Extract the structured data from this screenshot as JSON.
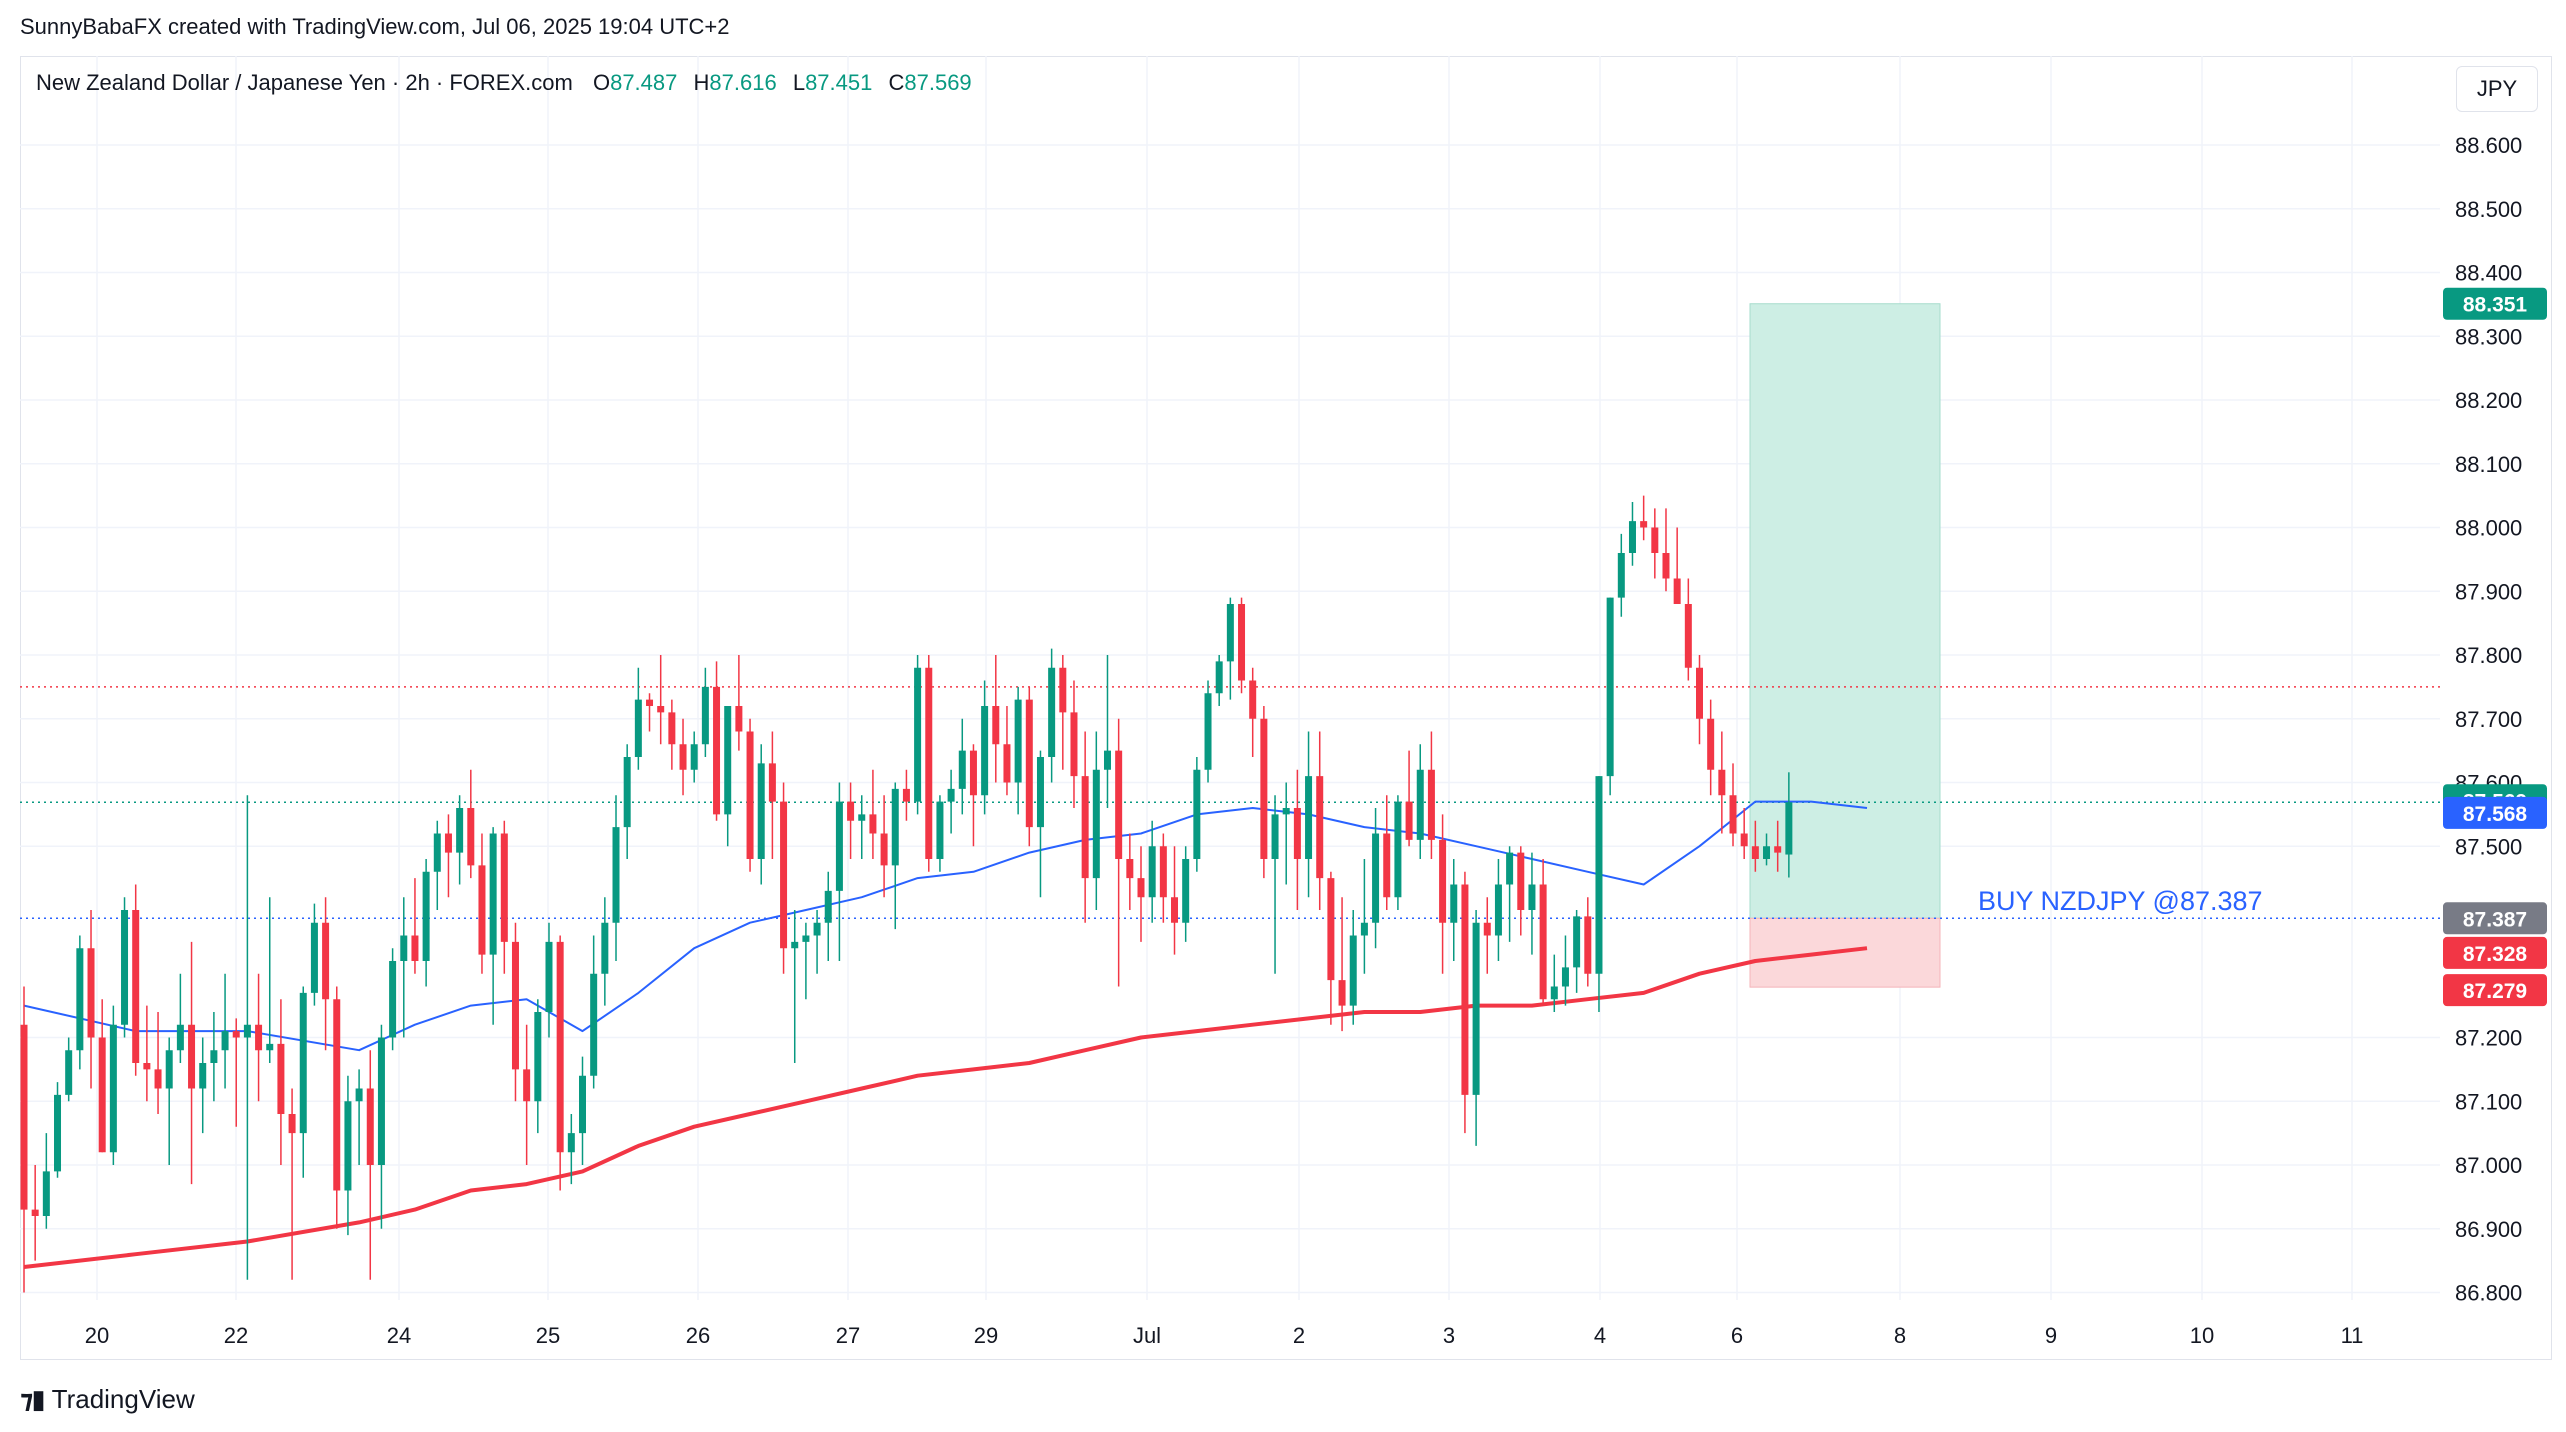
{
  "header": {
    "credit": "SunnyBabaFX created with TradingView.com, Jul 06, 2025 19:04 UTC+2"
  },
  "legend": {
    "symbol": "New Zealand Dollar / Japanese Yen · 2h · FOREX.com",
    "o_label": "O",
    "o_value": "87.487",
    "h_label": "H",
    "h_value": "87.616",
    "l_label": "L",
    "l_value": "87.451",
    "c_label": "C",
    "c_value": "87.569"
  },
  "currency_button": "JPY",
  "brand": {
    "name": "TradingView",
    "icon": "tradingview-logo-icon"
  },
  "colors": {
    "up": "#089981",
    "down": "#f23645",
    "ema_fast": "#2962ff",
    "ema_slow": "#f23645",
    "target_zone": "#cdeee4",
    "stop_zone": "#fbd8da",
    "entry": "#2962ff",
    "last_price_bg": "#089981",
    "fast_ema_bg": "#2962ff",
    "entry_bg": "#787b86",
    "stop_bg": "#f23645"
  },
  "chart_data": {
    "type": "candlestick",
    "ylim": [
      86.77,
      88.72
    ],
    "y_ticks": [
      "88.600",
      "88.500",
      "88.400",
      "88.300",
      "88.200",
      "88.100",
      "88.000",
      "87.900",
      "87.800",
      "87.700",
      "87.600",
      "87.500",
      "87.200",
      "87.100",
      "87.000",
      "86.900",
      "86.800"
    ],
    "x_ticks": [
      "20",
      "22",
      "24",
      "25",
      "26",
      "27",
      "29",
      "Jul",
      "2",
      "3",
      "4",
      "6",
      "8",
      "9",
      "10",
      "11"
    ],
    "candles": [
      [
        87.22,
        87.28,
        86.8,
        86.93
      ],
      [
        86.93,
        87.0,
        86.85,
        86.92
      ],
      [
        86.92,
        87.05,
        86.9,
        86.99
      ],
      [
        86.99,
        87.13,
        86.98,
        87.11
      ],
      [
        87.11,
        87.2,
        87.1,
        87.18
      ],
      [
        87.18,
        87.36,
        87.15,
        87.34
      ],
      [
        87.34,
        87.4,
        87.12,
        87.2
      ],
      [
        87.2,
        87.26,
        87.02,
        87.02
      ],
      [
        87.02,
        87.25,
        87.0,
        87.22
      ],
      [
        87.22,
        87.42,
        87.2,
        87.4
      ],
      [
        87.4,
        87.44,
        87.14,
        87.16
      ],
      [
        87.16,
        87.25,
        87.1,
        87.15
      ],
      [
        87.15,
        87.24,
        87.08,
        87.12
      ],
      [
        87.12,
        87.2,
        87.0,
        87.18
      ],
      [
        87.18,
        87.3,
        87.16,
        87.22
      ],
      [
        87.22,
        87.35,
        86.97,
        87.12
      ],
      [
        87.12,
        87.2,
        87.05,
        87.16
      ],
      [
        87.16,
        87.24,
        87.1,
        87.18
      ],
      [
        87.18,
        87.3,
        87.12,
        87.21
      ],
      [
        87.21,
        87.23,
        87.06,
        87.2
      ],
      [
        87.2,
        87.58,
        86.82,
        87.22
      ],
      [
        87.22,
        87.3,
        87.1,
        87.18
      ],
      [
        87.18,
        87.42,
        87.16,
        87.19
      ],
      [
        87.19,
        87.26,
        87.0,
        87.08
      ],
      [
        87.08,
        87.12,
        86.82,
        87.05
      ],
      [
        87.05,
        87.28,
        86.98,
        87.27
      ],
      [
        87.27,
        87.41,
        87.25,
        87.38
      ],
      [
        87.38,
        87.42,
        87.18,
        87.26
      ],
      [
        87.26,
        87.28,
        86.9,
        86.96
      ],
      [
        86.96,
        87.14,
        86.89,
        87.1
      ],
      [
        87.1,
        87.15,
        87.0,
        87.12
      ],
      [
        87.12,
        87.18,
        86.82,
        87.0
      ],
      [
        87.0,
        87.22,
        86.9,
        87.2
      ],
      [
        87.2,
        87.34,
        87.18,
        87.32
      ],
      [
        87.32,
        87.42,
        87.2,
        87.36
      ],
      [
        87.36,
        87.45,
        87.3,
        87.32
      ],
      [
        87.32,
        87.48,
        87.28,
        87.46
      ],
      [
        87.46,
        87.54,
        87.4,
        87.52
      ],
      [
        87.52,
        87.55,
        87.42,
        87.49
      ],
      [
        87.49,
        87.58,
        87.44,
        87.56
      ],
      [
        87.56,
        87.62,
        87.45,
        87.47
      ],
      [
        87.47,
        87.52,
        87.3,
        87.33
      ],
      [
        87.33,
        87.53,
        87.22,
        87.52
      ],
      [
        87.52,
        87.54,
        87.3,
        87.35
      ],
      [
        87.35,
        87.38,
        87.1,
        87.15
      ],
      [
        87.15,
        87.22,
        87.0,
        87.1
      ],
      [
        87.1,
        87.26,
        87.05,
        87.24
      ],
      [
        87.24,
        87.38,
        87.2,
        87.35
      ],
      [
        87.35,
        87.36,
        86.96,
        87.02
      ],
      [
        87.02,
        87.08,
        86.97,
        87.05
      ],
      [
        87.05,
        87.17,
        87.0,
        87.14
      ],
      [
        87.14,
        87.36,
        87.12,
        87.3
      ],
      [
        87.3,
        87.42,
        87.25,
        87.38
      ],
      [
        87.38,
        87.58,
        87.32,
        87.53
      ],
      [
        87.53,
        87.66,
        87.48,
        87.64
      ],
      [
        87.64,
        87.78,
        87.62,
        87.73
      ],
      [
        87.73,
        87.74,
        87.68,
        87.72
      ],
      [
        87.72,
        87.8,
        87.66,
        87.71
      ],
      [
        87.71,
        87.73,
        87.62,
        87.66
      ],
      [
        87.66,
        87.7,
        87.58,
        87.62
      ],
      [
        87.62,
        87.68,
        87.6,
        87.66
      ],
      [
        87.66,
        87.78,
        87.64,
        87.75
      ],
      [
        87.75,
        87.79,
        87.54,
        87.55
      ],
      [
        87.55,
        87.72,
        87.5,
        87.72
      ],
      [
        87.72,
        87.8,
        87.65,
        87.68
      ],
      [
        87.68,
        87.7,
        87.46,
        87.48
      ],
      [
        87.48,
        87.66,
        87.44,
        87.63
      ],
      [
        87.63,
        87.68,
        87.48,
        87.57
      ],
      [
        87.57,
        87.6,
        87.3,
        87.34
      ],
      [
        87.34,
        87.4,
        87.16,
        87.35
      ],
      [
        87.35,
        87.38,
        87.26,
        87.36
      ],
      [
        87.36,
        87.4,
        87.3,
        87.38
      ],
      [
        87.38,
        87.46,
        87.32,
        87.43
      ],
      [
        87.43,
        87.6,
        87.32,
        87.57
      ],
      [
        87.57,
        87.6,
        87.48,
        87.54
      ],
      [
        87.54,
        87.58,
        87.48,
        87.55
      ],
      [
        87.55,
        87.62,
        87.48,
        87.52
      ],
      [
        87.52,
        87.58,
        87.42,
        87.47
      ],
      [
        87.47,
        87.6,
        87.37,
        87.59
      ],
      [
        87.59,
        87.62,
        87.54,
        87.57
      ],
      [
        87.57,
        87.8,
        87.55,
        87.78
      ],
      [
        87.78,
        87.8,
        87.46,
        87.48
      ],
      [
        87.48,
        87.58,
        87.46,
        87.57
      ],
      [
        87.57,
        87.62,
        87.52,
        87.59
      ],
      [
        87.59,
        87.7,
        87.55,
        87.65
      ],
      [
        87.65,
        87.66,
        87.5,
        87.58
      ],
      [
        87.58,
        87.76,
        87.55,
        87.72
      ],
      [
        87.72,
        87.8,
        87.6,
        87.66
      ],
      [
        87.66,
        87.72,
        87.58,
        87.6
      ],
      [
        87.6,
        87.75,
        87.55,
        87.73
      ],
      [
        87.73,
        87.75,
        87.5,
        87.53
      ],
      [
        87.53,
        87.65,
        87.42,
        87.64
      ],
      [
        87.64,
        87.81,
        87.6,
        87.78
      ],
      [
        87.78,
        87.8,
        87.62,
        87.71
      ],
      [
        87.71,
        87.76,
        87.56,
        87.61
      ],
      [
        87.61,
        87.68,
        87.38,
        87.45
      ],
      [
        87.45,
        87.68,
        87.4,
        87.62
      ],
      [
        87.62,
        87.8,
        87.56,
        87.65
      ],
      [
        87.65,
        87.7,
        87.28,
        87.48
      ],
      [
        87.48,
        87.52,
        87.4,
        87.45
      ],
      [
        87.45,
        87.5,
        87.35,
        87.42
      ],
      [
        87.42,
        87.54,
        87.38,
        87.5
      ],
      [
        87.5,
        87.52,
        87.38,
        87.42
      ],
      [
        87.42,
        87.5,
        87.33,
        87.38
      ],
      [
        87.38,
        87.5,
        87.35,
        87.48
      ],
      [
        87.48,
        87.64,
        87.46,
        87.62
      ],
      [
        87.62,
        87.76,
        87.6,
        87.74
      ],
      [
        87.74,
        87.8,
        87.72,
        87.79
      ],
      [
        87.79,
        87.89,
        87.73,
        87.88
      ],
      [
        87.88,
        87.89,
        87.74,
        87.76
      ],
      [
        87.76,
        87.78,
        87.64,
        87.7
      ],
      [
        87.7,
        87.72,
        87.45,
        87.48
      ],
      [
        87.48,
        87.58,
        87.3,
        87.55
      ],
      [
        87.55,
        87.6,
        87.44,
        87.56
      ],
      [
        87.56,
        87.62,
        87.4,
        87.48
      ],
      [
        87.48,
        87.68,
        87.42,
        87.61
      ],
      [
        87.61,
        87.68,
        87.4,
        87.45
      ],
      [
        87.45,
        87.46,
        87.22,
        87.29
      ],
      [
        87.29,
        87.42,
        87.21,
        87.25
      ],
      [
        87.25,
        87.4,
        87.22,
        87.36
      ],
      [
        87.36,
        87.48,
        87.3,
        87.38
      ],
      [
        87.38,
        87.56,
        87.34,
        87.52
      ],
      [
        87.52,
        87.58,
        87.4,
        87.42
      ],
      [
        87.42,
        87.58,
        87.4,
        87.57
      ],
      [
        87.57,
        87.65,
        87.5,
        87.51
      ],
      [
        87.51,
        87.66,
        87.48,
        87.62
      ],
      [
        87.62,
        87.68,
        87.48,
        87.51
      ],
      [
        87.51,
        87.55,
        87.3,
        87.38
      ],
      [
        87.38,
        87.48,
        87.32,
        87.44
      ],
      [
        87.44,
        87.46,
        87.05,
        87.11
      ],
      [
        87.11,
        87.4,
        87.03,
        87.38
      ],
      [
        87.38,
        87.42,
        87.3,
        87.36
      ],
      [
        87.36,
        87.48,
        87.32,
        87.44
      ],
      [
        87.44,
        87.5,
        87.35,
        87.49
      ],
      [
        87.49,
        87.5,
        87.36,
        87.4
      ],
      [
        87.4,
        87.49,
        87.33,
        87.44
      ],
      [
        87.44,
        87.48,
        87.25,
        87.26
      ],
      [
        87.26,
        87.33,
        87.24,
        87.28
      ],
      [
        87.28,
        87.36,
        87.25,
        87.31
      ],
      [
        87.31,
        87.4,
        87.27,
        87.39
      ],
      [
        87.39,
        87.42,
        87.28,
        87.3
      ],
      [
        87.3,
        87.61,
        87.24,
        87.61
      ],
      [
        87.61,
        87.89,
        87.58,
        87.89
      ],
      [
        87.89,
        87.99,
        87.86,
        87.96
      ],
      [
        87.96,
        88.04,
        87.94,
        88.01
      ],
      [
        88.01,
        88.05,
        87.98,
        88.0
      ],
      [
        88.0,
        88.03,
        87.92,
        87.96
      ],
      [
        87.96,
        88.03,
        87.9,
        87.92
      ],
      [
        87.92,
        88.0,
        87.88,
        87.88
      ],
      [
        87.88,
        87.92,
        87.76,
        87.78
      ],
      [
        87.78,
        87.8,
        87.66,
        87.7
      ],
      [
        87.7,
        87.73,
        87.58,
        87.62
      ],
      [
        87.62,
        87.68,
        87.52,
        87.58
      ],
      [
        87.58,
        87.63,
        87.5,
        87.52
      ],
      [
        87.52,
        87.56,
        87.48,
        87.5
      ],
      [
        87.5,
        87.54,
        87.46,
        87.48
      ],
      [
        87.48,
        87.52,
        87.47,
        87.5
      ],
      [
        87.5,
        87.54,
        87.46,
        87.49
      ],
      [
        87.487,
        87.616,
        87.451,
        87.569
      ]
    ],
    "ema_fast": [
      [
        0,
        87.25
      ],
      [
        10,
        87.21
      ],
      [
        20,
        87.21
      ],
      [
        30,
        87.18
      ],
      [
        35,
        87.22
      ],
      [
        40,
        87.25
      ],
      [
        45,
        87.26
      ],
      [
        50,
        87.21
      ],
      [
        55,
        87.27
      ],
      [
        60,
        87.34
      ],
      [
        65,
        87.38
      ],
      [
        70,
        87.4
      ],
      [
        75,
        87.42
      ],
      [
        80,
        87.45
      ],
      [
        85,
        87.46
      ],
      [
        90,
        87.49
      ],
      [
        95,
        87.51
      ],
      [
        100,
        87.52
      ],
      [
        105,
        87.55
      ],
      [
        110,
        87.56
      ],
      [
        115,
        87.55
      ],
      [
        120,
        87.53
      ],
      [
        125,
        87.52
      ],
      [
        130,
        87.5
      ],
      [
        135,
        87.48
      ],
      [
        140,
        87.46
      ],
      [
        145,
        87.44
      ],
      [
        150,
        87.5
      ],
      [
        155,
        87.57
      ],
      [
        160,
        87.57
      ],
      [
        165,
        87.56
      ]
    ],
    "ema_slow": [
      [
        0,
        86.84
      ],
      [
        10,
        86.86
      ],
      [
        20,
        86.88
      ],
      [
        30,
        86.91
      ],
      [
        35,
        86.93
      ],
      [
        40,
        86.96
      ],
      [
        45,
        86.97
      ],
      [
        50,
        86.99
      ],
      [
        55,
        87.03
      ],
      [
        60,
        87.06
      ],
      [
        65,
        87.08
      ],
      [
        70,
        87.1
      ],
      [
        75,
        87.12
      ],
      [
        80,
        87.14
      ],
      [
        85,
        87.15
      ],
      [
        90,
        87.16
      ],
      [
        95,
        87.18
      ],
      [
        100,
        87.2
      ],
      [
        105,
        87.21
      ],
      [
        110,
        87.22
      ],
      [
        115,
        87.23
      ],
      [
        120,
        87.24
      ],
      [
        125,
        87.24
      ],
      [
        130,
        87.25
      ],
      [
        135,
        87.25
      ],
      [
        140,
        87.26
      ],
      [
        145,
        87.27
      ],
      [
        150,
        87.3
      ],
      [
        155,
        87.32
      ],
      [
        160,
        87.33
      ],
      [
        165,
        87.34
      ]
    ],
    "levels": {
      "last_price": 87.569,
      "fast_ema": 87.568,
      "entry": 87.387,
      "target": 88.351,
      "stop_a": 87.328,
      "stop_b": 87.279,
      "ref_red": 87.75
    },
    "price_labels": [
      "88.351",
      "87.569",
      "87.568",
      "87.387",
      "87.328",
      "87.279"
    ],
    "annotation": "BUY NZDJPY @87.387",
    "position_box": {
      "entry": 87.387,
      "target": 88.351,
      "stop": 87.279
    }
  }
}
